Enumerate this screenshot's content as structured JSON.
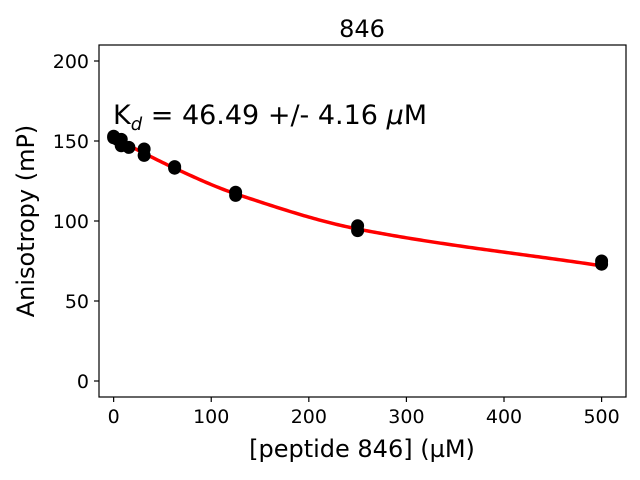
{
  "chart_data": {
    "type": "scatter",
    "title": "846",
    "xlabel": "[peptide 846] (µM)",
    "ylabel": "Anisotropy (mP)",
    "xlim": [
      -15,
      525
    ],
    "ylim": [
      -10,
      210
    ],
    "x_ticks": [
      0,
      100,
      200,
      300,
      400,
      500
    ],
    "y_ticks": [
      0,
      50,
      100,
      150,
      200
    ],
    "grid": false,
    "annotation": {
      "text_prefix": "K",
      "text_sub": "d",
      "text_rest": " = 46.49 +/- 4.16 ",
      "text_mu": "µ",
      "text_unit": "M"
    },
    "point_color": "#000000",
    "fit_color": "#ff0000",
    "points": [
      {
        "x": 0,
        "y": 152
      },
      {
        "x": 0,
        "y": 153
      },
      {
        "x": 3.9,
        "y": 151
      },
      {
        "x": 7.8,
        "y": 151
      },
      {
        "x": 7.8,
        "y": 147
      },
      {
        "x": 15.6,
        "y": 146
      },
      {
        "x": 31.25,
        "y": 145
      },
      {
        "x": 31.25,
        "y": 141
      },
      {
        "x": 62.5,
        "y": 134
      },
      {
        "x": 62.5,
        "y": 133
      },
      {
        "x": 125,
        "y": 118
      },
      {
        "x": 125,
        "y": 116
      },
      {
        "x": 250,
        "y": 97
      },
      {
        "x": 250,
        "y": 94
      },
      {
        "x": 500,
        "y": 75
      },
      {
        "x": 500,
        "y": 73
      }
    ],
    "fit": {
      "model": "binding",
      "x_start": 0,
      "x_end": 500,
      "y_at_zero": 152,
      "y_at_62_5": 133,
      "y_at_125": 117,
      "y_at_250": 95,
      "y_at_500": 72
    }
  }
}
